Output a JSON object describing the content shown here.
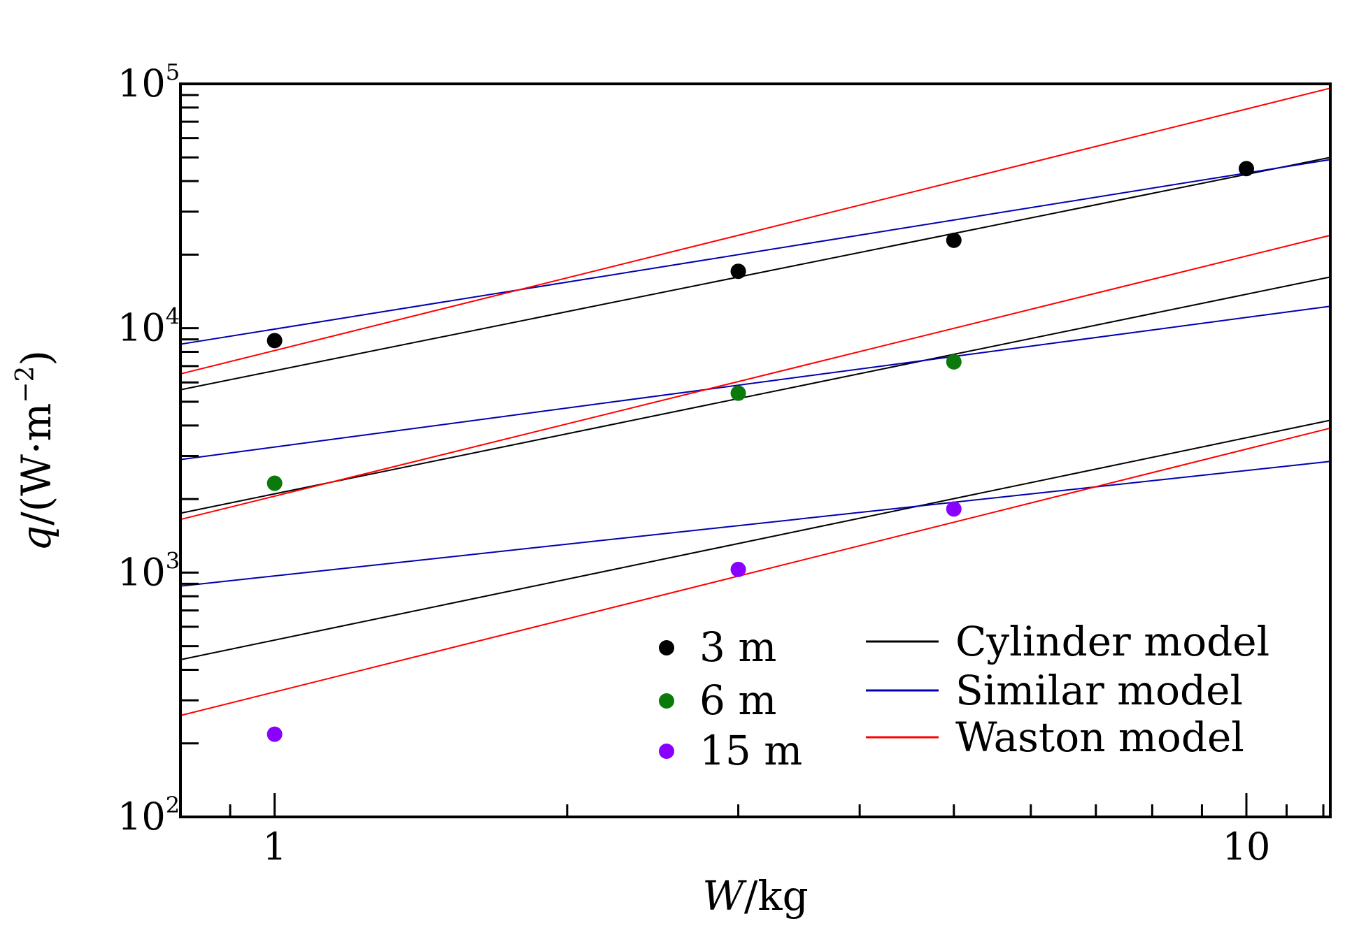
{
  "chart_data": {
    "type": "scatter",
    "title": "",
    "xlabel": {
      "italic": "W",
      "rest": "/kg"
    },
    "ylabel": {
      "italic": "q",
      "rest": "/(W·m",
      "sup": "−2",
      "close": ")"
    },
    "xscale": "log",
    "yscale": "log",
    "xlim": [
      0.8,
      12.2
    ],
    "ylim": [
      100,
      100000
    ],
    "x_ticks": [
      {
        "value": 1,
        "label": "1"
      },
      {
        "value": 10,
        "label": "10"
      }
    ],
    "y_ticks": [
      {
        "value": 100,
        "base": "10",
        "exp": "2"
      },
      {
        "value": 1000,
        "base": "10",
        "exp": "3"
      },
      {
        "value": 10000,
        "base": "10",
        "exp": "4"
      },
      {
        "value": 100000,
        "base": "10",
        "exp": "5"
      }
    ],
    "grid": false,
    "legend_position": "bottom-right",
    "scatter_series": [
      {
        "name": "3 m",
        "color": "#000000",
        "points": [
          [
            1,
            8900
          ],
          [
            3,
            17100
          ],
          [
            5,
            22900
          ],
          [
            10,
            45000
          ]
        ]
      },
      {
        "name": "6 m",
        "color": "#0a7a0a",
        "points": [
          [
            1,
            2320
          ],
          [
            3,
            5420
          ],
          [
            5,
            7280
          ]
        ]
      },
      {
        "name": "15 m",
        "color": "#8a00ff",
        "points": [
          [
            1,
            218
          ],
          [
            3,
            1030
          ],
          [
            5,
            1820
          ]
        ]
      }
    ],
    "model_lines": [
      {
        "name": "Cylinder model",
        "color": "#000000",
        "lines": [
          {
            "x": [
              0.8,
              12.2
            ],
            "y": [
              5600,
              50000
            ]
          },
          {
            "x": [
              0.8,
              12.2
            ],
            "y": [
              1750,
              16200
            ]
          },
          {
            "x": [
              0.8,
              12.2
            ],
            "y": [
              440,
              4200
            ]
          }
        ]
      },
      {
        "name": "Similar model",
        "color": "#0000b0",
        "lines": [
          {
            "x": [
              0.8,
              12.2
            ],
            "y": [
              8600,
              49000
            ]
          },
          {
            "x": [
              0.8,
              12.2
            ],
            "y": [
              2900,
              12300
            ]
          },
          {
            "x": [
              0.8,
              12.2
            ],
            "y": [
              880,
              2850
            ]
          }
        ]
      },
      {
        "name": "Waston model",
        "color": "#ff0000",
        "lines": [
          {
            "x": [
              0.8,
              12.2
            ],
            "y": [
              6500,
              96000
            ]
          },
          {
            "x": [
              0.8,
              12.2
            ],
            "y": [
              1650,
              24000
            ]
          },
          {
            "x": [
              0.8,
              12.2
            ],
            "y": [
              260,
              3900
            ]
          }
        ]
      }
    ]
  }
}
